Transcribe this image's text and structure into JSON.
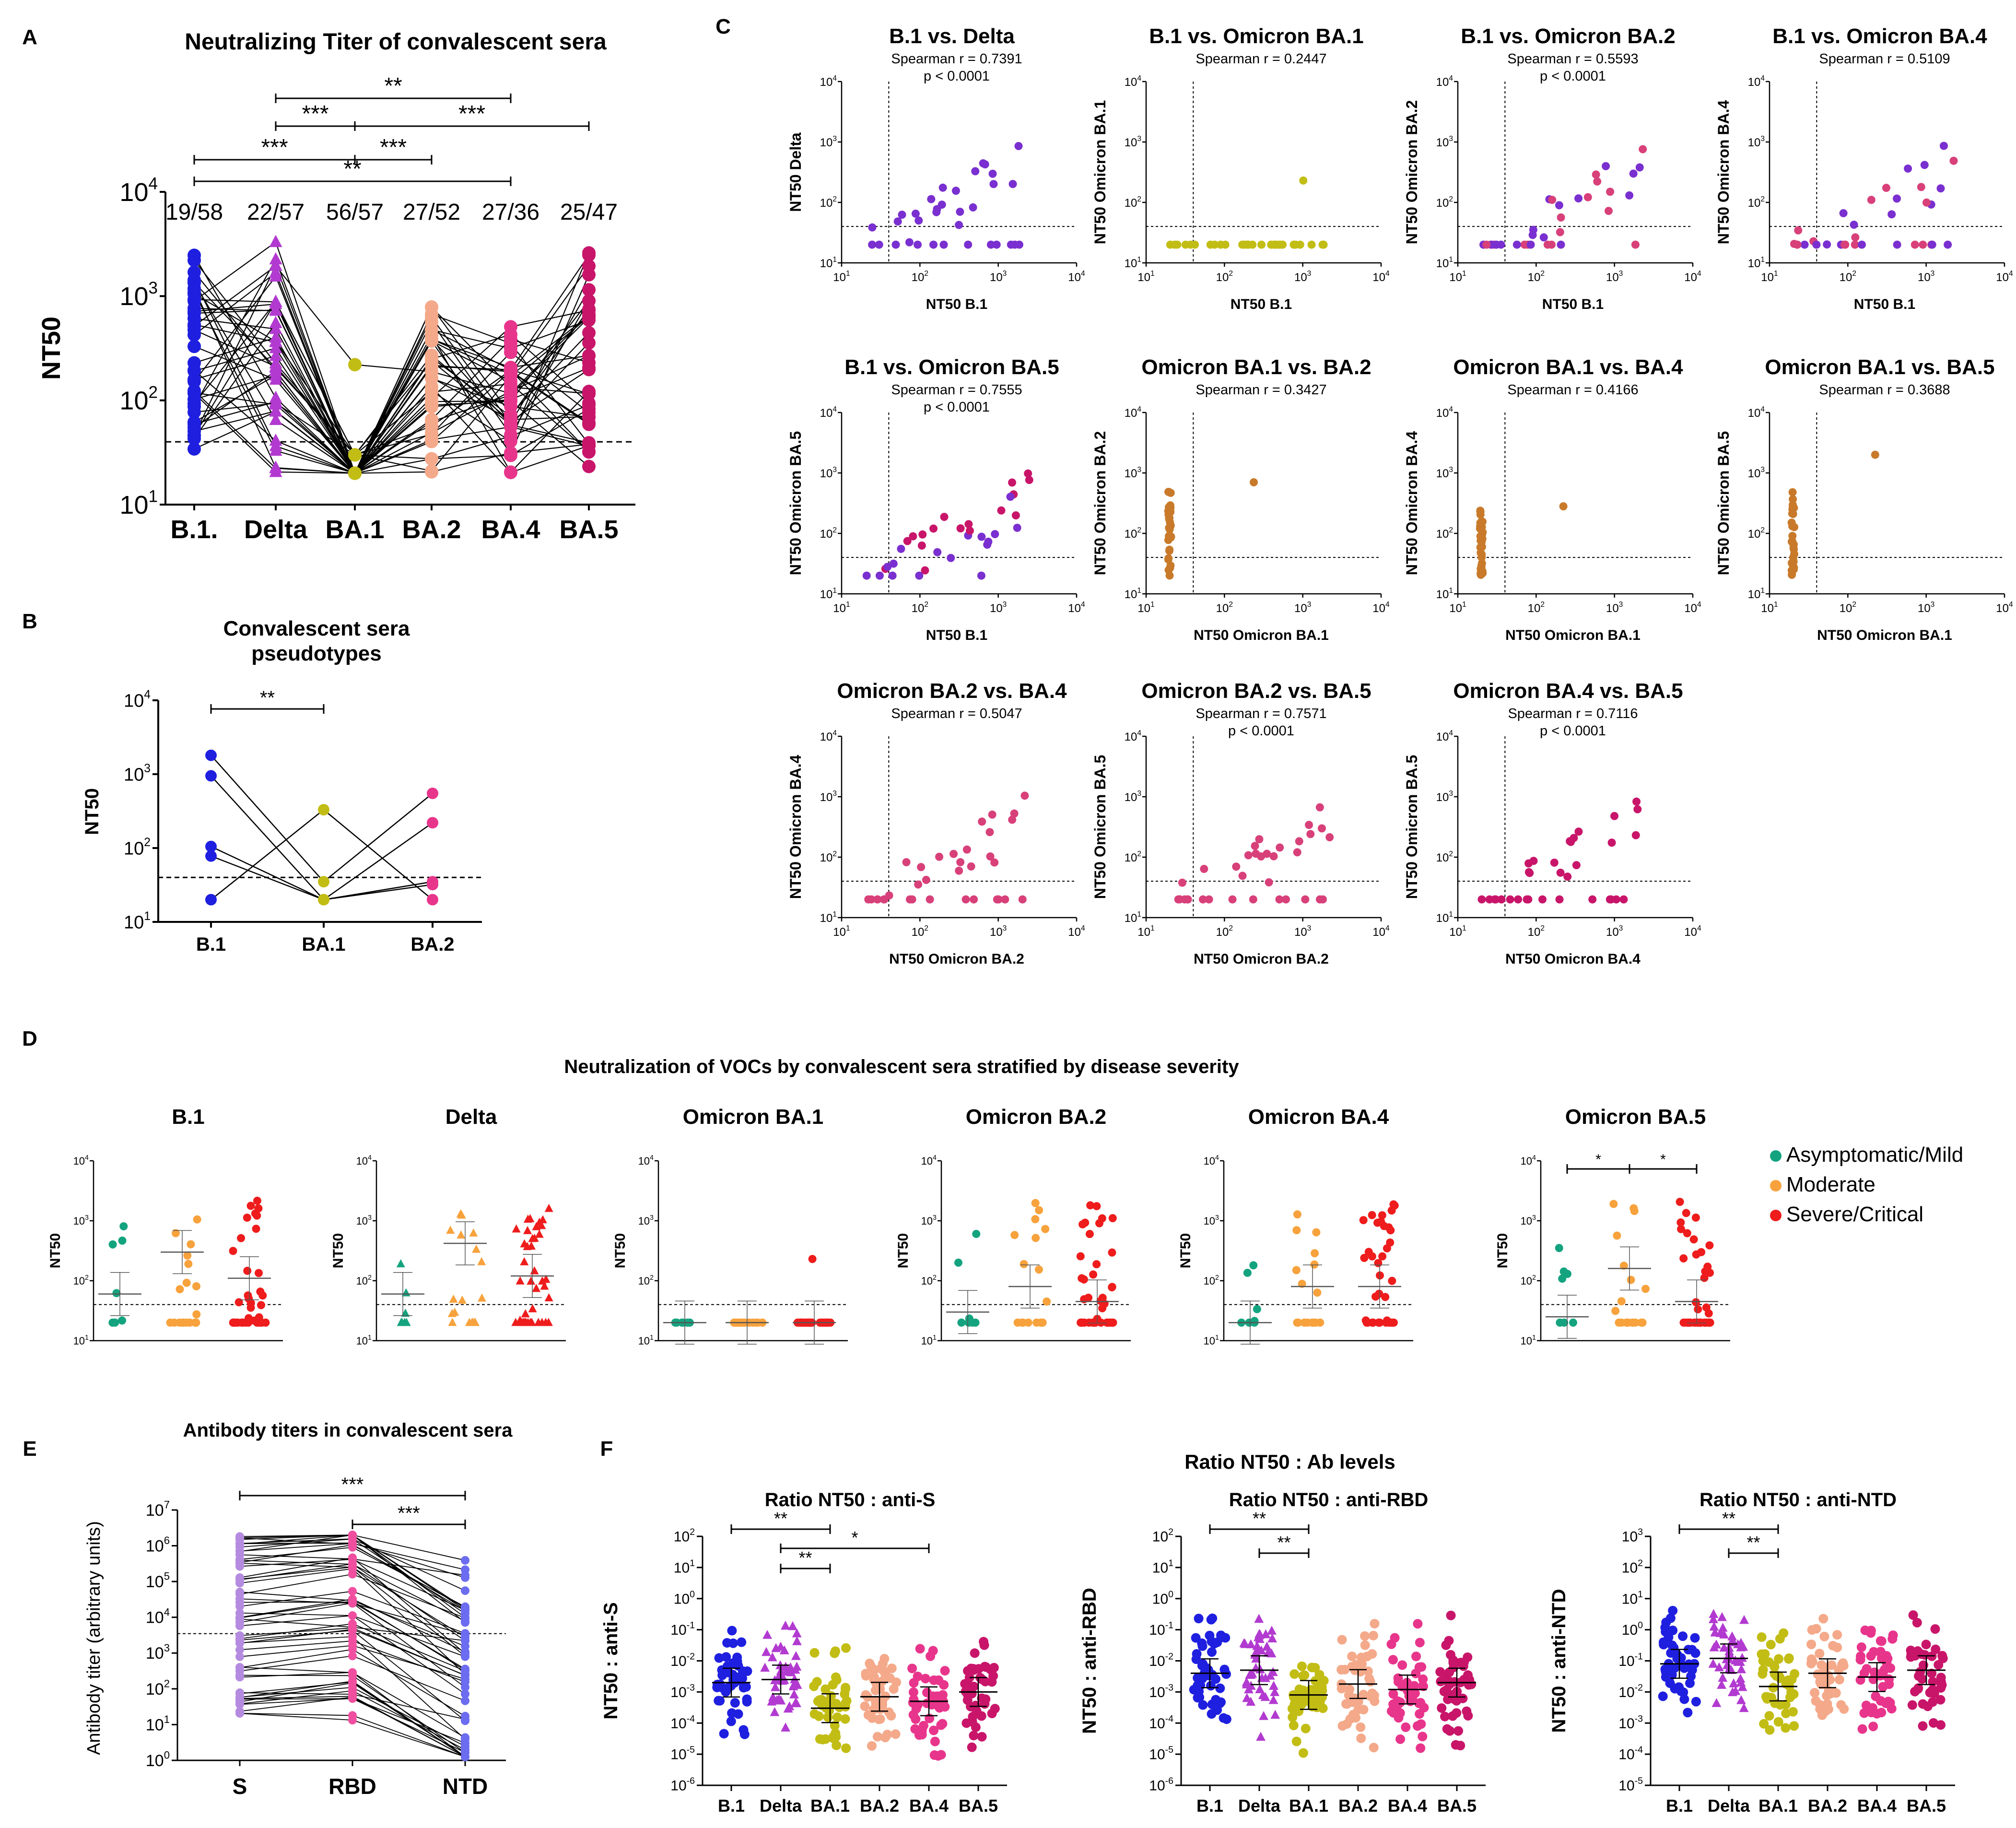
{
  "colors": {
    "B1": "#1f1fe0",
    "Delta": "#b23ad0",
    "BA1": "#c2bd14",
    "BA2": "#f4a98a",
    "BA4": "#e8358c",
    "BA5": "#c8156a",
    "asym": "#14a37f",
    "moderate": "#f7a23c",
    "severe": "#ee1c1c",
    "ab_S": "#b58be0",
    "ab_RBD": "#f04fa0",
    "ab_NTD": "#6c6cf0",
    "purple_pt": "#7a2fd0",
    "orange_pt": "#c87a2a",
    "pink_pt": "#d8407a"
  },
  "panel_letters": [
    "A",
    "B",
    "C",
    "D",
    "E",
    "F"
  ],
  "chart_data": [
    {
      "id": "A",
      "type": "scatter",
      "title": "Neutralizing Titer of convalescent sera",
      "ylabel": "NT50",
      "yscale": "log",
      "ylim_exp": [
        1,
        4
      ],
      "threshold": 40,
      "categories": [
        "B.1.",
        "Delta",
        "BA.1",
        "BA.2",
        "BA.4",
        "BA.5"
      ],
      "counts": [
        "19/58",
        "22/57",
        "56/57",
        "27/52",
        "27/36",
        "25/47"
      ],
      "brackets": [
        {
          "from": 1,
          "to": 4,
          "label": "**"
        },
        {
          "from": 1,
          "to": 2,
          "label": "***"
        },
        {
          "from": 2,
          "to": 5,
          "label": "***"
        },
        {
          "from": 0,
          "to": 2,
          "label": "***"
        },
        {
          "from": 2,
          "to": 3,
          "label": "***"
        },
        {
          "from": 0,
          "to": 4,
          "label": "**"
        }
      ]
    },
    {
      "id": "B",
      "type": "scatter",
      "title": "Convalescent sera pseudotypes",
      "ylabel": "NT50",
      "yscale": "log",
      "ylim_exp": [
        1,
        4
      ],
      "threshold": 40,
      "categories": [
        "B.1",
        "BA.1",
        "BA.2"
      ],
      "values": [
        [
          1800,
          950,
          105,
          78,
          20
        ],
        [
          330,
          35,
          20,
          20,
          20
        ],
        [
          550,
          220,
          35,
          32,
          20
        ]
      ],
      "brackets": [
        {
          "from": 0,
          "to": 1,
          "label": "**"
        }
      ]
    },
    {
      "id": "C",
      "type": "scatter",
      "grid_titles": "correlation",
      "panels": [
        {
          "title": "B.1 vs. Delta",
          "xlabel": "NT50 B.1",
          "ylabel": "NT50 Delta",
          "r": "Spearman r = 0.7391",
          "p": "p < 0.0001"
        },
        {
          "title": "B.1 vs. Omicron BA.1",
          "xlabel": "NT50 B.1",
          "ylabel": "NT50 Omicron BA.1",
          "r": "Spearman r = 0.2447",
          "p": ""
        },
        {
          "title": "B.1 vs. Omicron BA.2",
          "xlabel": "NT50 B.1",
          "ylabel": "NT50 Omicron BA.2",
          "r": "Spearman r = 0.5593",
          "p": "p < 0.0001"
        },
        {
          "title": "B.1 vs. Omicron BA.4",
          "xlabel": "NT50 B.1",
          "ylabel": "NT50 Omicron BA.4",
          "r": "Spearman r = 0.5109",
          "p": ""
        },
        {
          "title": "B.1 vs. Omicron BA.5",
          "xlabel": "NT50 B.1",
          "ylabel": "NT50 Omicron BA.5",
          "r": "Spearman r = 0.7555",
          "p": "p < 0.0001"
        },
        {
          "title": "Omicron BA.1 vs. BA.2",
          "xlabel": "NT50 Omicron BA.1",
          "ylabel": "NT50 Omicron BA.2",
          "r": "Spearman r = 0.3427",
          "p": ""
        },
        {
          "title": "Omicron BA.1 vs. BA.4",
          "xlabel": "NT50 Omicron BA.1",
          "ylabel": "NT50 Omicron BA.4",
          "r": "Spearman r = 0.4166",
          "p": ""
        },
        {
          "title": "Omicron BA.1 vs. BA.5",
          "xlabel": "NT50 Omicron BA.1",
          "ylabel": "NT50 Omicron BA.5",
          "r": "Spearman r = 0.3688",
          "p": ""
        },
        {
          "title": "Omicron BA.2 vs. BA.4",
          "xlabel": "NT50 Omicron BA.2",
          "ylabel": "NT50 Omicron BA.4",
          "r": "Spearman r = 0.5047",
          "p": ""
        },
        {
          "title": "Omicron BA.2 vs. BA.5",
          "xlabel": "NT50 Omicron BA.2",
          "ylabel": "NT50 Omicron BA.5",
          "r": "Spearman r = 0.7571",
          "p": "p < 0.0001"
        },
        {
          "title": "Omicron BA.4 vs. BA.5",
          "xlabel": "NT50 Omicron BA.4",
          "ylabel": "NT50 Omicron BA.5",
          "r": "Spearman r = 0.7116",
          "p": "p < 0.0001"
        }
      ],
      "axis_exp": [
        1,
        4
      ],
      "threshold": 40
    },
    {
      "id": "D",
      "type": "scatter",
      "title": "Neutralization of VOCs by convalescent sera stratified by disease severity",
      "ylabel": "NT50",
      "yscale": "log",
      "ylim_exp": [
        1,
        4
      ],
      "threshold": 40,
      "panels": [
        {
          "title": "B.1",
          "medians": [
            60,
            300,
            110
          ],
          "brackets": []
        },
        {
          "title": "Delta",
          "medians": [
            60,
            420,
            120
          ],
          "brackets": []
        },
        {
          "title": "Omicron BA.1",
          "medians": [
            20,
            20,
            20
          ],
          "brackets": []
        },
        {
          "title": "Omicron BA.2",
          "medians": [
            30,
            80,
            45
          ],
          "brackets": []
        },
        {
          "title": "Omicron BA.4",
          "medians": [
            20,
            80,
            80
          ],
          "brackets": []
        },
        {
          "title": "Omicron BA.5",
          "medians": [
            25,
            160,
            45
          ],
          "brackets": [
            {
              "from": 0,
              "to": 1,
              "label": "*"
            },
            {
              "from": 1,
              "to": 2,
              "label": "*"
            }
          ]
        }
      ],
      "legend": [
        "Asymptomatic/Mild",
        "Moderate",
        "Severe/Critical"
      ]
    },
    {
      "id": "E",
      "type": "scatter",
      "title": "Antibody titers in convalescent sera",
      "ylabel": "Antibody titer (arbitrary units)",
      "yscale": "log",
      "ylim_exp": [
        0,
        7
      ],
      "threshold": 3500,
      "categories": [
        "S",
        "RBD",
        "NTD"
      ],
      "brackets": [
        {
          "from": 0,
          "to": 2,
          "label": "***"
        },
        {
          "from": 1,
          "to": 2,
          "label": "***"
        }
      ]
    },
    {
      "id": "F",
      "type": "scatter",
      "title": "Ratio NT50 : Ab levels",
      "categories": [
        "B.1",
        "Delta",
        "BA.1",
        "BA.2",
        "BA.4",
        "BA.5"
      ],
      "panels": [
        {
          "title": "Ratio NT50 : anti-S",
          "ylabel": "NT50 : anti-S",
          "ylim_exp": [
            -6,
            2
          ],
          "medians": [
            0.002,
            0.0025,
            0.0003,
            0.0007,
            0.0005,
            0.001
          ],
          "brackets": [
            {
              "from": 0,
              "to": 2,
              "label": "**"
            },
            {
              "from": 1,
              "to": 4,
              "label": "*"
            },
            {
              "from": 1,
              "to": 2,
              "label": "**"
            }
          ]
        },
        {
          "title": "Ratio NT50 : anti-RBD",
          "ylabel": "NT50 : anti-RBD",
          "ylim_exp": [
            -6,
            2
          ],
          "medians": [
            0.004,
            0.005,
            0.0008,
            0.0018,
            0.0012,
            0.002
          ],
          "brackets": [
            {
              "from": 0,
              "to": 2,
              "label": "**"
            },
            {
              "from": 1,
              "to": 2,
              "label": "**"
            }
          ]
        },
        {
          "title": "Ratio NT50 : anti-NTD",
          "ylabel": "NT50 : anti-NTD",
          "ylim_exp": [
            -5,
            3
          ],
          "medians": [
            0.08,
            0.12,
            0.015,
            0.04,
            0.03,
            0.05
          ],
          "brackets": [
            {
              "from": 0,
              "to": 2,
              "label": "**"
            },
            {
              "from": 1,
              "to": 2,
              "label": "**"
            }
          ]
        }
      ]
    }
  ]
}
